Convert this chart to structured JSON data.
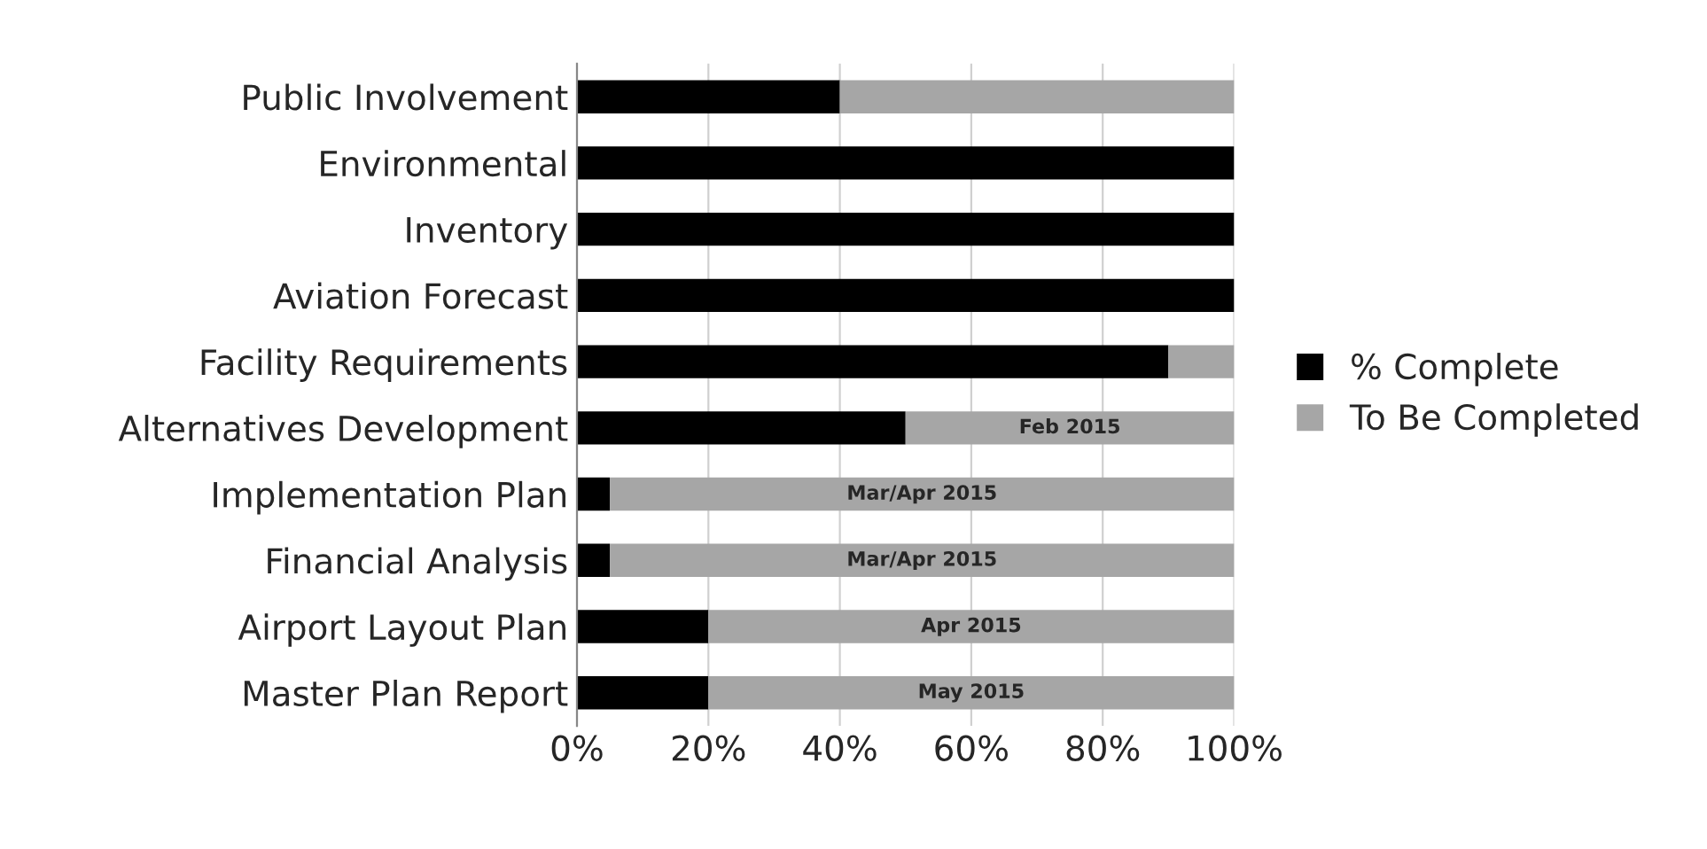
{
  "chart_data": {
    "type": "bar",
    "orientation": "horizontal",
    "stacked": true,
    "categories": [
      "Public Involvement",
      "Environmental",
      "Inventory",
      "Aviation Forecast",
      "Facility Requirements",
      "Alternatives Development",
      "Implementation Plan",
      "Financial Analysis",
      "Airport Layout Plan",
      "Master Plan Report"
    ],
    "series": [
      {
        "name": "% Complete",
        "color": "#000000",
        "values": [
          40,
          100,
          100,
          100,
          90,
          50,
          5,
          5,
          20,
          20
        ]
      },
      {
        "name": "To Be Completed",
        "color": "#a6a6a6",
        "values": [
          60,
          0,
          0,
          0,
          10,
          50,
          95,
          95,
          80,
          80
        ],
        "value_labels": [
          null,
          null,
          null,
          null,
          null,
          "Feb 2015",
          "Mar/Apr 2015",
          "Mar/Apr 2015",
          "Apr 2015",
          "May 2015"
        ]
      }
    ],
    "xlim": [
      0,
      100
    ],
    "xticks": [
      {
        "value": 0,
        "label": "0%"
      },
      {
        "value": 20,
        "label": "20%"
      },
      {
        "value": 40,
        "label": "40%"
      },
      {
        "value": 60,
        "label": "60%"
      },
      {
        "value": 80,
        "label": "80%"
      },
      {
        "value": 100,
        "label": "100%"
      }
    ],
    "grid": "x",
    "legend": "right"
  }
}
